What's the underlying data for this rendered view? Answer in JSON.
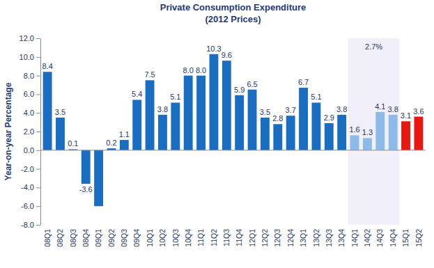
{
  "chart_data": {
    "type": "bar",
    "title": "Private Consumption Expenditure",
    "subtitle": "(2012 Prices)",
    "y_label": "Year-on-year Percentage",
    "categories": [
      "08Q1",
      "08Q2",
      "08Q3",
      "08Q4",
      "09Q1",
      "09Q2",
      "09Q3",
      "09Q4",
      "10Q1",
      "10Q2",
      "10Q3",
      "10Q4",
      "11Q1",
      "11Q2",
      "11Q3",
      "11Q4",
      "12Q1",
      "12Q2",
      "12Q3",
      "12Q4",
      "13Q1",
      "13Q2",
      "13Q3",
      "13Q4",
      "14Q1",
      "14Q2",
      "14Q3",
      "14Q4",
      "15Q1",
      "15Q2"
    ],
    "values": [
      8.4,
      3.5,
      0.1,
      -3.6,
      -6.0,
      0.2,
      1.1,
      5.4,
      7.5,
      3.8,
      5.1,
      8.0,
      8.0,
      10.3,
      9.6,
      5.9,
      6.5,
      3.5,
      2.8,
      3.7,
      6.7,
      5.1,
      2.9,
      3.8,
      1.6,
      1.3,
      4.1,
      3.8,
      3.1,
      3.6
    ],
    "value_labels": [
      "8.4",
      "3.5",
      "0.1",
      "-3.6",
      null,
      "0.2",
      "1.1",
      "5.4",
      "7.5",
      "3.8",
      "5.1",
      "8.0",
      "8.0",
      "10.3",
      "9.6",
      "5.9",
      "6.5",
      "3.5",
      "2.8",
      "3.7",
      "6.7",
      "5.1",
      "2.9",
      "3.8",
      "1.6",
      "1.3",
      "4.1",
      "3.8",
      "3.1",
      "3.6"
    ],
    "colors": [
      "#1a6ec2",
      "#1a6ec2",
      "#1a6ec2",
      "#1a6ec2",
      "#1a6ec2",
      "#1a6ec2",
      "#1a6ec2",
      "#1a6ec2",
      "#1a6ec2",
      "#1a6ec2",
      "#1a6ec2",
      "#1a6ec2",
      "#1a6ec2",
      "#1a6ec2",
      "#1a6ec2",
      "#1a6ec2",
      "#1a6ec2",
      "#1a6ec2",
      "#1a6ec2",
      "#1a6ec2",
      "#1a6ec2",
      "#1a6ec2",
      "#1a6ec2",
      "#1a6ec2",
      "#8dbbe9",
      "#8dbbe9",
      "#8dbbe9",
      "#8dbbe9",
      "#e8170f",
      "#e8170f"
    ],
    "ylim": [
      -8,
      12
    ],
    "yticks": [
      {
        "value": -8,
        "label": "-8.0"
      },
      {
        "value": -6,
        "label": "-6.0"
      },
      {
        "value": -4,
        "label": "-4.0"
      },
      {
        "value": -2,
        "label": "-2.0"
      },
      {
        "value": 0,
        "label": "0.0"
      },
      {
        "value": 2,
        "label": "2.0"
      },
      {
        "value": 4,
        "label": "4.0"
      },
      {
        "value": 6,
        "label": "6.0"
      },
      {
        "value": 8,
        "label": "8.0"
      },
      {
        "value": 10,
        "label": "10.0"
      },
      {
        "value": 12,
        "label": "12.0"
      }
    ],
    "annotations": [
      {
        "text": "2.7%",
        "from": "14Q1",
        "to": "14Q4"
      }
    ],
    "grid": false,
    "data_labels": true
  }
}
